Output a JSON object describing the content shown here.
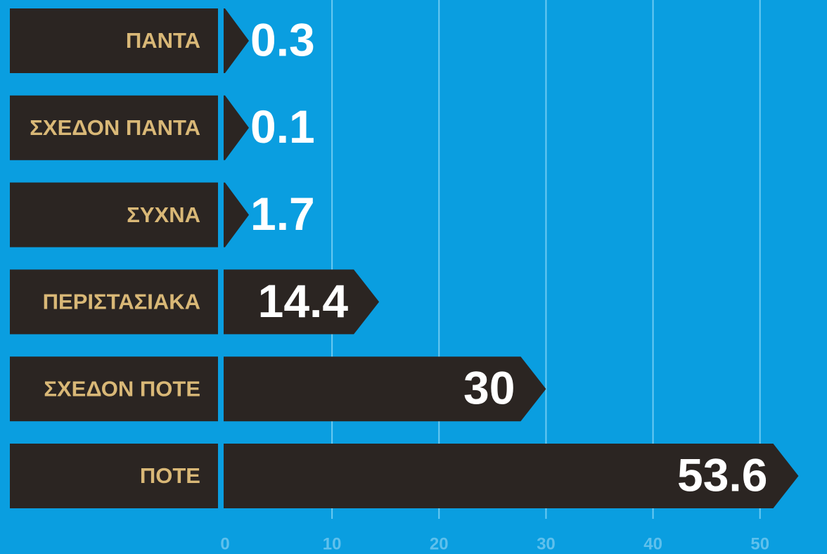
{
  "chart_data": {
    "type": "barh",
    "categories": [
      "ΠΑΝΤΑ",
      "ΣΧΕΔΟΝ ΠΑΝΤΑ",
      "ΣΥΧΝΑ",
      "ΠΕΡΙΣΤΑΣΙΑΚΑ",
      "ΣΧΕΔΟΝ ΠΟΤΕ",
      "ΠΟΤΕ"
    ],
    "values": [
      0.3,
      0.1,
      1.7,
      14.4,
      30,
      53.6
    ],
    "color": "#2b2522",
    "xlim": [
      0,
      56
    ],
    "xticks": [
      0,
      10,
      20,
      30,
      40,
      50
    ],
    "grid": true
  }
}
